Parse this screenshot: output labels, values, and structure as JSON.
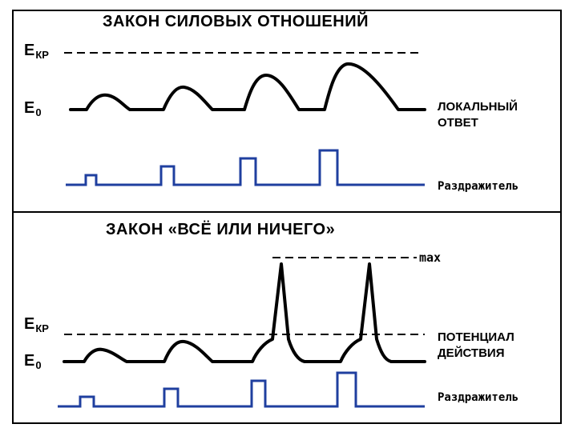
{
  "top_panel": {
    "title": "ЗАКОН СИЛОВЫХ ОТНОШЕНИЙ",
    "ekr_main": "E",
    "ekr_sub": "КР",
    "e0_main": "E",
    "e0_sub": "0",
    "response_label_line1": "ЛОКАЛЬНЫЙ",
    "response_label_line2": "ОТВЕТ",
    "stimulus_label": "Раздражитель"
  },
  "bottom_panel": {
    "title": "ЗАКОН «ВСЁ ИЛИ НИЧЕГО»",
    "max_label": "max",
    "ekr_main": "E",
    "ekr_sub": "КР",
    "e0_main": "E",
    "e0_sub": "0",
    "response_label_line1": "ПОТЕНЦИАЛ",
    "response_label_line2": "ДЕЙСТВИЯ",
    "stimulus_label": "Раздражитель"
  },
  "colors": {
    "response_trace": "#000000",
    "stimulus_trace": "#1f3f9f",
    "threshold_line": "#000000"
  }
}
